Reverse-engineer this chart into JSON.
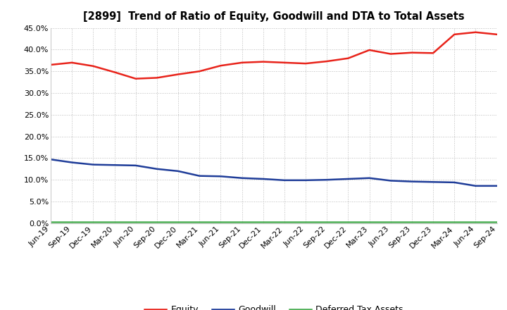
{
  "title": "[2899]  Trend of Ratio of Equity, Goodwill and DTA to Total Assets",
  "labels": [
    "Jun-19",
    "Sep-19",
    "Dec-19",
    "Mar-20",
    "Jun-20",
    "Sep-20",
    "Dec-20",
    "Mar-21",
    "Jun-21",
    "Sep-21",
    "Dec-21",
    "Mar-22",
    "Jun-22",
    "Sep-22",
    "Dec-22",
    "Mar-23",
    "Jun-23",
    "Sep-23",
    "Dec-23",
    "Mar-24",
    "Jun-24",
    "Sep-24"
  ],
  "equity": [
    0.365,
    0.37,
    0.362,
    0.348,
    0.333,
    0.335,
    0.343,
    0.35,
    0.363,
    0.37,
    0.372,
    0.37,
    0.368,
    0.373,
    0.38,
    0.399,
    0.39,
    0.393,
    0.392,
    0.435,
    0.44,
    0.435
  ],
  "goodwill": [
    0.147,
    0.14,
    0.135,
    0.134,
    0.133,
    0.125,
    0.12,
    0.109,
    0.108,
    0.104,
    0.102,
    0.099,
    0.099,
    0.1,
    0.102,
    0.104,
    0.098,
    0.096,
    0.095,
    0.094,
    0.086,
    0.086
  ],
  "dta": [
    0.003,
    0.003,
    0.003,
    0.003,
    0.003,
    0.003,
    0.003,
    0.003,
    0.003,
    0.003,
    0.003,
    0.003,
    0.003,
    0.003,
    0.003,
    0.003,
    0.003,
    0.003,
    0.003,
    0.003,
    0.003,
    0.003
  ],
  "equity_color": "#e8231a",
  "goodwill_color": "#1f3d99",
  "dta_color": "#4aad52",
  "background_color": "#ffffff",
  "grid_color": "#bbbbbb",
  "ylim": [
    0.0,
    0.45
  ],
  "yticks": [
    0.0,
    0.05,
    0.1,
    0.15,
    0.2,
    0.25,
    0.3,
    0.35,
    0.4,
    0.45
  ],
  "legend_labels": [
    "Equity",
    "Goodwill",
    "Deferred Tax Assets"
  ],
  "linewidth": 1.8,
  "figsize": [
    7.2,
    4.4
  ],
  "dpi": 100
}
